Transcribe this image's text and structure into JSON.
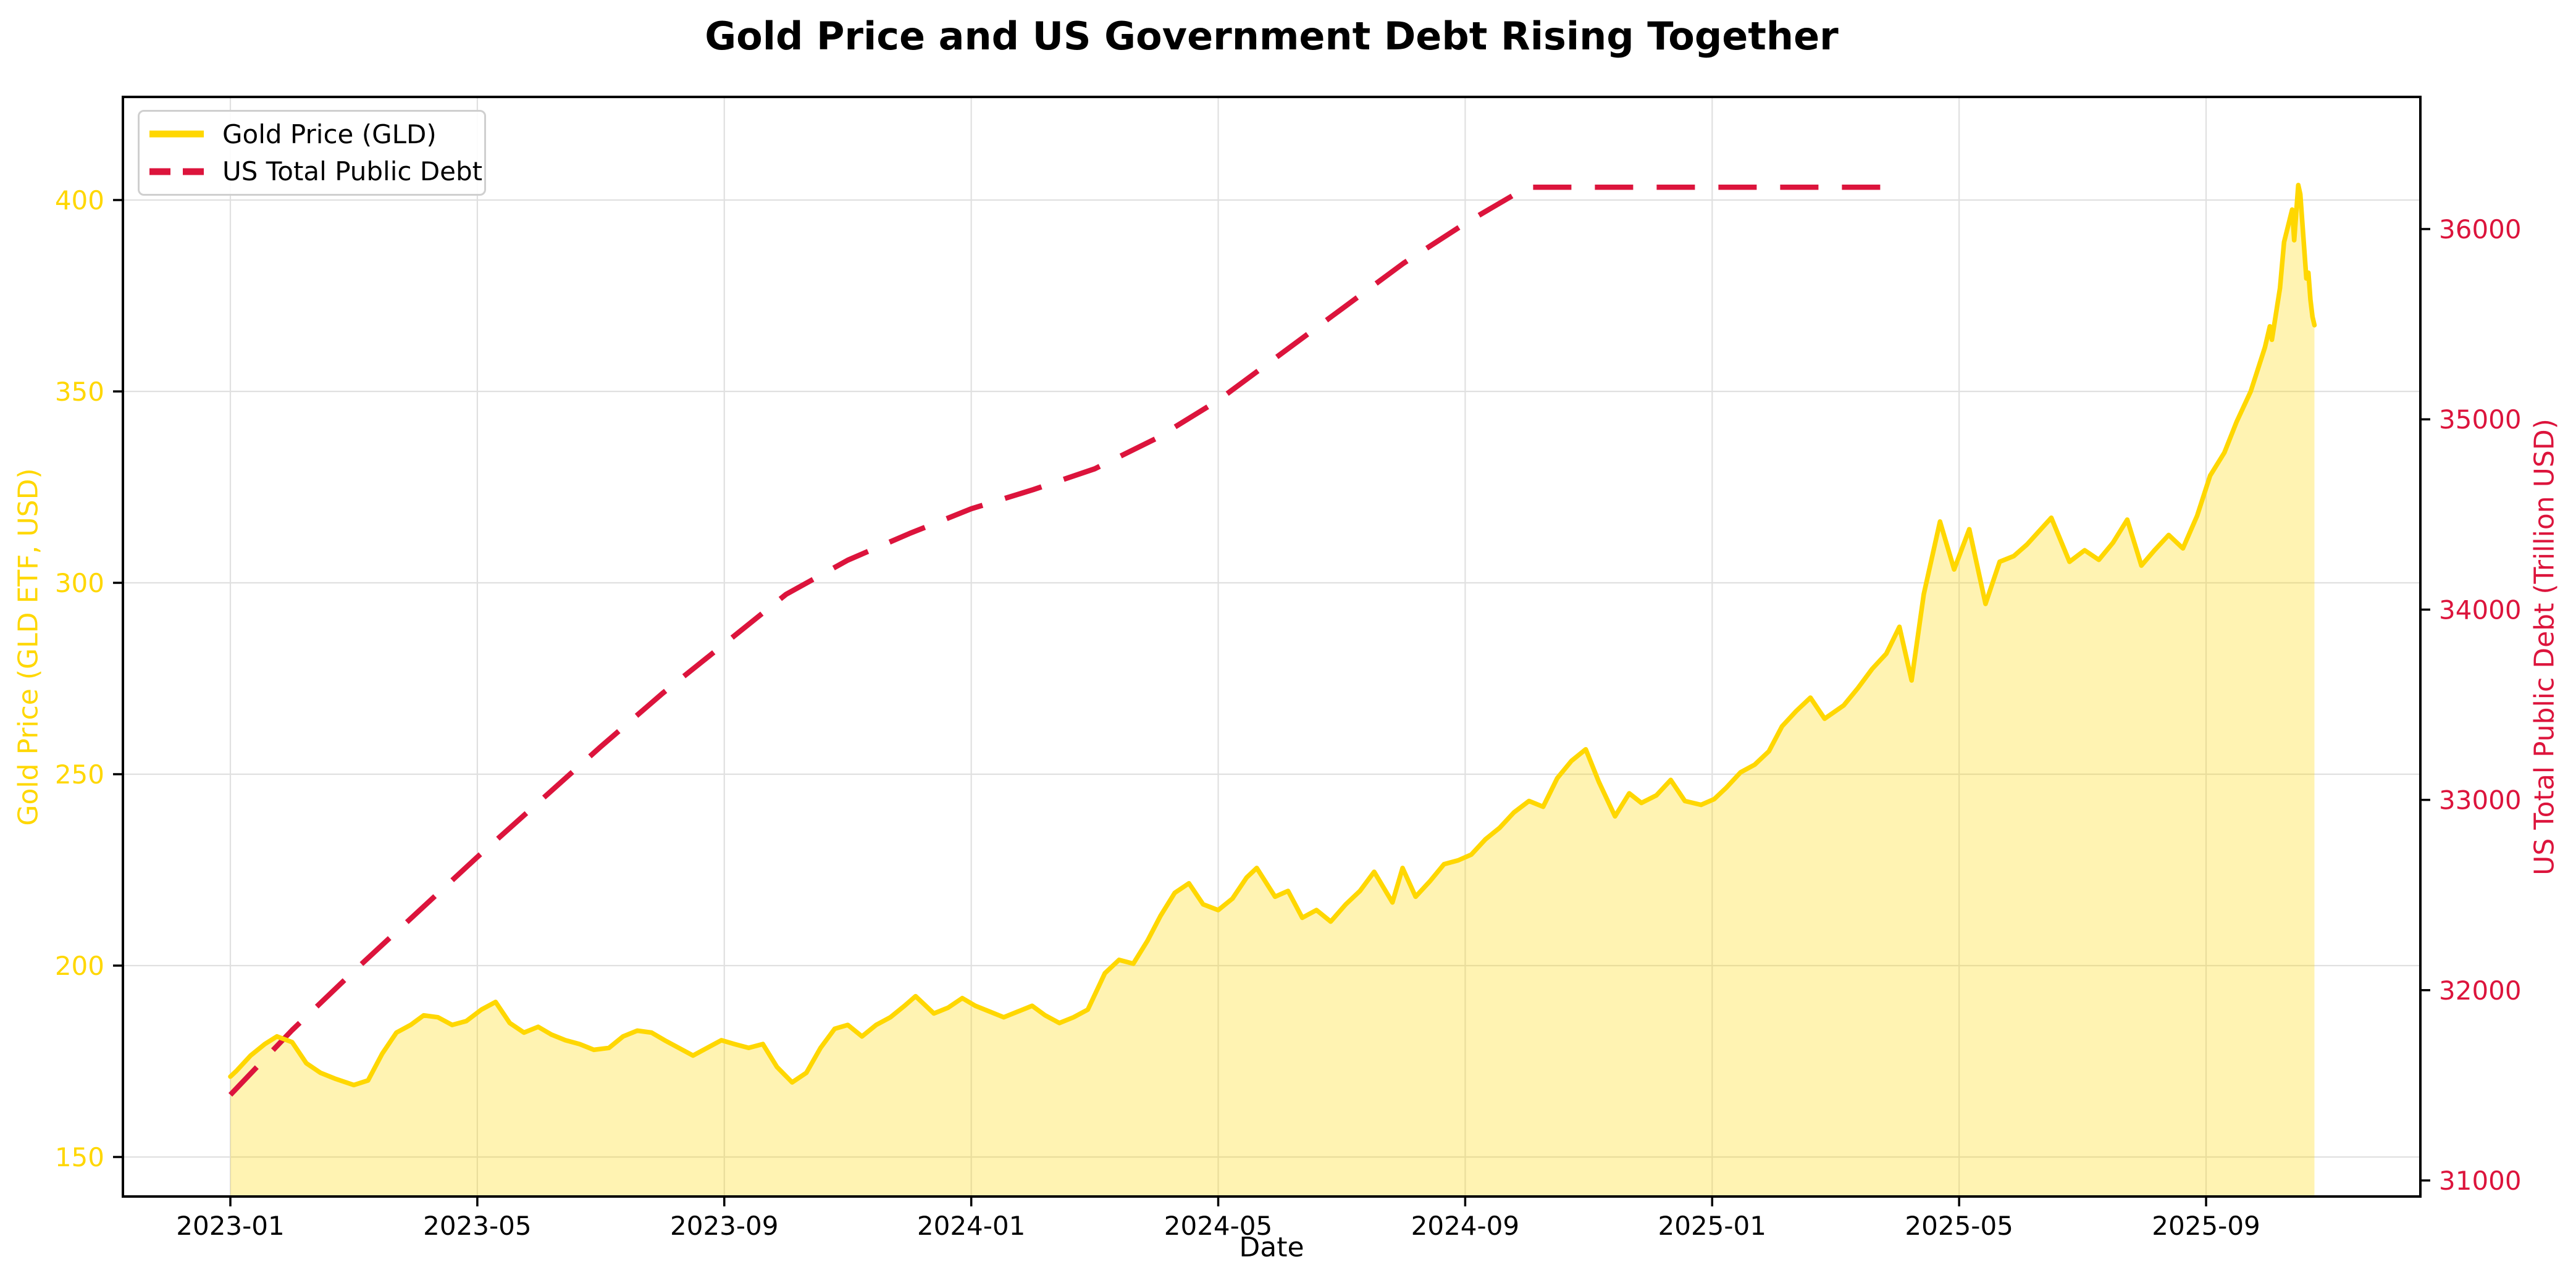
{
  "title": {
    "text": "Gold Price and US Government Debt Rising Together"
  },
  "legend": {
    "position": "upper left",
    "items": [
      {
        "label": "Gold Price (GLD)",
        "color": "#FFD700",
        "style": "solid"
      },
      {
        "label": "US Total Public Debt",
        "color": "#DC143C",
        "style": "dashed"
      }
    ]
  },
  "axes": {
    "x": {
      "label": "Date",
      "tick_labels": [
        "2023-01",
        "2023-05",
        "2023-09",
        "2024-01",
        "2024-05",
        "2024-09",
        "2025-01",
        "2025-05",
        "2025-09"
      ],
      "tick_color": "#000000"
    },
    "y_left": {
      "label": "Gold Price (GLD ETF, USD)",
      "ticks": [
        150,
        200,
        250,
        300,
        350,
        400
      ],
      "color": "#FFD700"
    },
    "y_right": {
      "label": "US Total Public Debt (Trillion USD)",
      "ticks": [
        31000,
        32000,
        33000,
        34000,
        35000,
        36000
      ],
      "color": "#DC143C"
    }
  },
  "chart_data": {
    "type": "line",
    "title": "Gold Price and US Government Debt Rising Together",
    "xlabel": "Date",
    "ylabel_left": "Gold Price (GLD ETF, USD)",
    "ylabel_right": "US Total Public Debt (Trillion USD)",
    "x_range": [
      "2022-11-08",
      "2025-12-15"
    ],
    "y_left_range": [
      139.7,
      427.0
    ],
    "y_right_range": [
      30915,
      36700
    ],
    "grid": true,
    "grid_color": "#e0e0e0",
    "legend_position": "upper left",
    "series": [
      {
        "name": "Gold Price (GLD)",
        "axis": "left",
        "color": "#FFD700",
        "style": "solid",
        "fill": "rgba(255,215,0,0.3)",
        "points": [
          [
            "2023-01-01",
            171.0
          ],
          [
            "2023-01-04",
            172.5
          ],
          [
            "2023-01-11",
            176.5
          ],
          [
            "2023-01-18",
            179.5
          ],
          [
            "2023-01-24",
            181.5
          ],
          [
            "2023-02-01",
            180.0
          ],
          [
            "2023-02-08",
            174.5
          ],
          [
            "2023-02-15",
            172.0
          ],
          [
            "2023-02-22",
            170.5
          ],
          [
            "2023-03-01",
            168.8
          ],
          [
            "2023-03-08",
            170.0
          ],
          [
            "2023-03-15",
            177.0
          ],
          [
            "2023-03-22",
            182.5
          ],
          [
            "2023-03-29",
            184.5
          ],
          [
            "2023-04-05",
            187.0
          ],
          [
            "2023-04-12",
            186.5
          ],
          [
            "2023-04-19",
            184.5
          ],
          [
            "2023-04-26",
            185.5
          ],
          [
            "2023-05-03",
            188.5
          ],
          [
            "2023-05-10",
            190.5
          ],
          [
            "2023-05-17",
            185.0
          ],
          [
            "2023-05-24",
            182.5
          ],
          [
            "2023-05-31",
            184.0
          ],
          [
            "2023-06-07",
            182.0
          ],
          [
            "2023-06-14",
            180.5
          ],
          [
            "2023-06-21",
            179.5
          ],
          [
            "2023-06-28",
            178.0
          ],
          [
            "2023-07-05",
            178.5
          ],
          [
            "2023-07-12",
            181.5
          ],
          [
            "2023-07-19",
            183.0
          ],
          [
            "2023-07-26",
            182.5
          ],
          [
            "2023-08-02",
            180.5
          ],
          [
            "2023-08-09",
            178.5
          ],
          [
            "2023-08-16",
            176.5
          ],
          [
            "2023-08-23",
            178.5
          ],
          [
            "2023-08-30",
            180.5
          ],
          [
            "2023-09-06",
            179.5
          ],
          [
            "2023-09-13",
            178.5
          ],
          [
            "2023-09-20",
            179.5
          ],
          [
            "2023-09-27",
            173.5
          ],
          [
            "2023-10-04",
            169.5
          ],
          [
            "2023-10-11",
            172.0
          ],
          [
            "2023-10-18",
            178.5
          ],
          [
            "2023-10-25",
            183.5
          ],
          [
            "2023-11-01",
            184.5
          ],
          [
            "2023-11-08",
            181.5
          ],
          [
            "2023-11-15",
            184.5
          ],
          [
            "2023-11-22",
            186.5
          ],
          [
            "2023-11-29",
            189.5
          ],
          [
            "2023-12-04",
            192.0
          ],
          [
            "2023-12-13",
            187.5
          ],
          [
            "2023-12-20",
            189.0
          ],
          [
            "2023-12-27",
            191.5
          ],
          [
            "2024-01-03",
            189.5
          ],
          [
            "2024-01-10",
            188.0
          ],
          [
            "2024-01-17",
            186.5
          ],
          [
            "2024-01-24",
            188.0
          ],
          [
            "2024-01-31",
            189.5
          ],
          [
            "2024-02-07",
            187.0
          ],
          [
            "2024-02-14",
            185.0
          ],
          [
            "2024-02-21",
            186.5
          ],
          [
            "2024-02-28",
            188.5
          ],
          [
            "2024-03-06",
            198.0
          ],
          [
            "2024-03-13",
            201.5
          ],
          [
            "2024-03-20",
            200.5
          ],
          [
            "2024-03-27",
            206.5
          ],
          [
            "2024-04-03",
            213.0
          ],
          [
            "2024-04-10",
            219.0
          ],
          [
            "2024-04-17",
            221.5
          ],
          [
            "2024-04-24",
            216.0
          ],
          [
            "2024-05-01",
            214.5
          ],
          [
            "2024-05-08",
            217.5
          ],
          [
            "2024-05-15",
            223.0
          ],
          [
            "2024-05-20",
            225.5
          ],
          [
            "2024-05-29",
            218.0
          ],
          [
            "2024-06-05",
            219.5
          ],
          [
            "2024-06-12",
            212.5
          ],
          [
            "2024-06-19",
            214.5
          ],
          [
            "2024-06-26",
            211.5
          ],
          [
            "2024-07-03",
            216.0
          ],
          [
            "2024-07-10",
            219.5
          ],
          [
            "2024-07-17",
            224.5
          ],
          [
            "2024-07-26",
            216.5
          ],
          [
            "2024-07-31",
            225.5
          ],
          [
            "2024-08-07",
            218.0
          ],
          [
            "2024-08-14",
            222.0
          ],
          [
            "2024-08-21",
            226.5
          ],
          [
            "2024-08-28",
            227.5
          ],
          [
            "2024-09-04",
            229.0
          ],
          [
            "2024-09-11",
            233.0
          ],
          [
            "2024-09-18",
            236.0
          ],
          [
            "2024-09-25",
            240.0
          ],
          [
            "2024-10-02",
            243.0
          ],
          [
            "2024-10-09",
            241.5
          ],
          [
            "2024-10-16",
            249.0
          ],
          [
            "2024-10-23",
            253.5
          ],
          [
            "2024-10-30",
            256.5
          ],
          [
            "2024-11-06",
            248.0
          ],
          [
            "2024-11-14",
            239.0
          ],
          [
            "2024-11-21",
            245.0
          ],
          [
            "2024-11-27",
            242.5
          ],
          [
            "2024-12-04",
            244.5
          ],
          [
            "2024-12-11",
            248.5
          ],
          [
            "2024-12-18",
            243.0
          ],
          [
            "2024-12-26",
            242.0
          ],
          [
            "2025-01-02",
            243.5
          ],
          [
            "2025-01-08",
            246.5
          ],
          [
            "2025-01-15",
            250.5
          ],
          [
            "2025-01-22",
            252.5
          ],
          [
            "2025-01-29",
            256.0
          ],
          [
            "2025-02-05",
            262.5
          ],
          [
            "2025-02-12",
            266.5
          ],
          [
            "2025-02-19",
            270.0
          ],
          [
            "2025-02-26",
            264.5
          ],
          [
            "2025-03-05",
            268.0
          ],
          [
            "2025-03-12",
            272.5
          ],
          [
            "2025-03-19",
            277.5
          ],
          [
            "2025-03-26",
            281.5
          ],
          [
            "2025-04-02",
            288.5
          ],
          [
            "2025-04-08",
            274.5
          ],
          [
            "2025-04-14",
            297.0
          ],
          [
            "2025-04-22",
            316.0
          ],
          [
            "2025-04-29",
            303.5
          ],
          [
            "2025-05-06",
            314.0
          ],
          [
            "2025-05-14",
            294.5
          ],
          [
            "2025-05-21",
            305.5
          ],
          [
            "2025-05-28",
            307.0
          ],
          [
            "2025-06-04",
            310.0
          ],
          [
            "2025-06-10",
            313.5
          ],
          [
            "2025-06-16",
            317.0
          ],
          [
            "2025-06-25",
            305.5
          ],
          [
            "2025-07-02",
            308.5
          ],
          [
            "2025-07-09",
            306.0
          ],
          [
            "2025-07-16",
            310.5
          ],
          [
            "2025-07-23",
            316.5
          ],
          [
            "2025-07-30",
            304.5
          ],
          [
            "2025-08-06",
            308.5
          ],
          [
            "2025-08-13",
            312.5
          ],
          [
            "2025-08-20",
            309.0
          ],
          [
            "2025-08-27",
            317.5
          ],
          [
            "2025-09-03",
            328.0
          ],
          [
            "2025-09-10",
            334.0
          ],
          [
            "2025-09-16",
            342.0
          ],
          [
            "2025-09-23",
            350.0
          ],
          [
            "2025-09-30",
            361.5
          ],
          [
            "2025-10-02",
            367.0
          ],
          [
            "2025-10-03",
            363.5
          ],
          [
            "2025-10-07",
            377.0
          ],
          [
            "2025-10-09",
            389.0
          ],
          [
            "2025-10-13",
            397.5
          ],
          [
            "2025-10-14",
            389.5
          ],
          [
            "2025-10-16",
            403.9
          ],
          [
            "2025-10-17",
            401.5
          ],
          [
            "2025-10-20",
            379.5
          ],
          [
            "2025-10-21",
            381.0
          ],
          [
            "2025-10-22",
            374.0
          ],
          [
            "2025-10-23",
            369.5
          ],
          [
            "2025-10-24",
            367.3
          ]
        ]
      },
      {
        "name": "US Total Public Debt",
        "axis": "right",
        "color": "#DC143C",
        "style": "dashed",
        "points": [
          [
            "2023-01-01",
            31450
          ],
          [
            "2023-02-01",
            31790
          ],
          [
            "2023-03-01",
            32100
          ],
          [
            "2023-04-01",
            32400
          ],
          [
            "2023-05-01",
            32700
          ],
          [
            "2023-06-01",
            32990
          ],
          [
            "2023-07-01",
            33280
          ],
          [
            "2023-08-01",
            33560
          ],
          [
            "2023-09-01",
            33820
          ],
          [
            "2023-10-01",
            34080
          ],
          [
            "2023-11-01",
            34260
          ],
          [
            "2023-12-01",
            34400
          ],
          [
            "2024-01-01",
            34530
          ],
          [
            "2024-02-01",
            34630
          ],
          [
            "2024-03-01",
            34740
          ],
          [
            "2024-04-01",
            34900
          ],
          [
            "2024-05-01",
            35100
          ],
          [
            "2024-06-01",
            35340
          ],
          [
            "2024-07-01",
            35580
          ],
          [
            "2024-08-01",
            35820
          ],
          [
            "2024-09-01",
            36030
          ],
          [
            "2024-10-01",
            36220
          ],
          [
            "2024-11-01",
            36220
          ],
          [
            "2024-12-01",
            36220
          ],
          [
            "2025-01-01",
            36220
          ],
          [
            "2025-02-01",
            36220
          ],
          [
            "2025-03-01",
            36220
          ],
          [
            "2025-04-01",
            36220
          ]
        ]
      }
    ]
  }
}
